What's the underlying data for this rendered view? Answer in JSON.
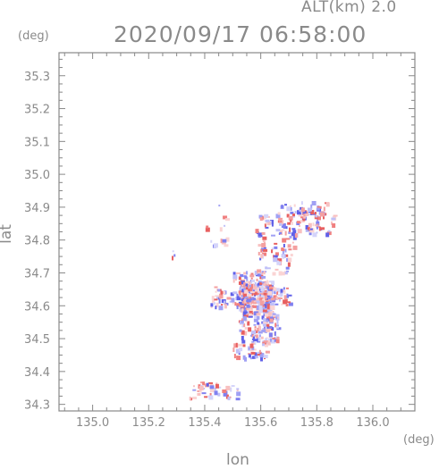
{
  "header": {
    "altitude_label": "ALT(km)  2.0",
    "timestamp": "2020/09/17 06:58:00"
  },
  "axes": {
    "y_unit": "(deg)",
    "x_unit": "(deg)",
    "xlabel": "lon",
    "ylabel": "lat"
  },
  "chart_data": {
    "type": "heatmap",
    "title": "2020/09/17 06:58:00",
    "xlabel": "lon",
    "ylabel": "lat",
    "xlim": [
      134.88,
      136.15
    ],
    "ylim": [
      34.28,
      35.37
    ],
    "x_ticks": [
      "135.0",
      "135.2",
      "135.4",
      "135.6",
      "135.8",
      "136.0"
    ],
    "y_ticks": [
      "34.3",
      "34.4",
      "34.5",
      "34.6",
      "34.7",
      "34.8",
      "34.9",
      "35.0",
      "35.1",
      "35.2",
      "35.3"
    ],
    "grid": false,
    "colors": {
      "positive": "#f08080",
      "negative": "#8080f0",
      "frame": "#888888"
    },
    "clusters": [
      {
        "lon": [
          135.52,
          135.64
        ],
        "lat": [
          34.58,
          34.68
        ],
        "count": 220
      },
      {
        "lon": [
          135.42,
          135.7
        ],
        "lat": [
          34.6,
          34.66
        ],
        "count": 140
      },
      {
        "lon": [
          135.52,
          135.66
        ],
        "lat": [
          34.49,
          34.58
        ],
        "count": 120
      },
      {
        "lon": [
          135.5,
          135.62
        ],
        "lat": [
          34.44,
          34.49
        ],
        "count": 40
      },
      {
        "lon": [
          135.58,
          135.72
        ],
        "lat": [
          34.74,
          34.88
        ],
        "count": 70
      },
      {
        "lon": [
          135.66,
          135.86
        ],
        "lat": [
          34.82,
          34.92
        ],
        "count": 90
      },
      {
        "lon": [
          135.5,
          135.62
        ],
        "lat": [
          34.67,
          34.72
        ],
        "count": 40
      },
      {
        "lon": [
          135.34,
          135.52
        ],
        "lat": [
          34.32,
          34.37
        ],
        "count": 45
      },
      {
        "lon": [
          135.4,
          135.48
        ],
        "lat": [
          34.78,
          34.92
        ],
        "count": 15
      },
      {
        "lon": [
          135.28,
          135.29
        ],
        "lat": [
          34.75,
          34.77
        ],
        "count": 3
      },
      {
        "lon": [
          135.74,
          135.8
        ],
        "lat": [
          34.86,
          34.9
        ],
        "count": 20
      },
      {
        "lon": [
          135.64,
          135.7
        ],
        "lat": [
          34.7,
          34.76
        ],
        "count": 20
      }
    ]
  }
}
